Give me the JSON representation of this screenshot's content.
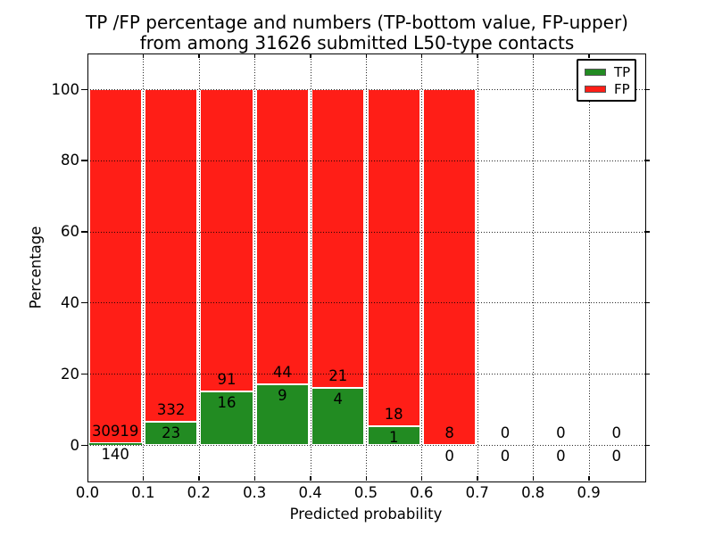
{
  "figure": {
    "title_line1": "TP /FP percentage and numbers (TP-bottom value, FP-upper)",
    "title_line2": "from among 31626 submitted L50-type contacts",
    "xlabel": "Predicted probability",
    "ylabel": "Percentage"
  },
  "legend": {
    "items": [
      {
        "label": "TP",
        "color": "#228b22"
      },
      {
        "label": "FP",
        "color": "#ff1e17"
      }
    ]
  },
  "axes": {
    "ytick_labels": [
      "0",
      "20",
      "40",
      "60",
      "80",
      "100"
    ],
    "ytick_values": [
      0,
      20,
      40,
      60,
      80,
      100
    ],
    "xtick_labels": [
      "0.0",
      "0.1",
      "0.2",
      "0.3",
      "0.4",
      "0.5",
      "0.6",
      "0.7",
      "0.8",
      "0.9"
    ],
    "xtick_values": [
      0.0,
      0.1,
      0.2,
      0.3,
      0.4,
      0.5,
      0.6,
      0.7,
      0.8,
      0.9
    ]
  },
  "chart_data": {
    "type": "bar",
    "variant": "stacked-percentage-histogram",
    "title": "TP /FP percentage and numbers (TP-bottom value, FP-upper) from among 31626 submitted L50-type contacts",
    "total_submitted_contacts": 31626,
    "xlabel": "Predicted probability",
    "ylabel": "Percentage",
    "xlim": [
      0.0,
      1.0
    ],
    "ylim": [
      -10.6,
      110
    ],
    "bin_width": 0.1,
    "categories": [
      "0.0-0.1",
      "0.1-0.2",
      "0.2-0.3",
      "0.3-0.4",
      "0.4-0.5",
      "0.5-0.6",
      "0.6-0.7",
      "0.7-0.8",
      "0.8-0.9",
      "0.9-1.0"
    ],
    "series": [
      {
        "name": "TP",
        "color": "#228b22",
        "counts": [
          140,
          23,
          16,
          9,
          4,
          1,
          0,
          0,
          0,
          0
        ]
      },
      {
        "name": "FP",
        "color": "#ff1e17",
        "counts": [
          30919,
          332,
          91,
          44,
          21,
          18,
          8,
          0,
          0,
          0
        ]
      }
    ],
    "tp_percent_per_bin": [
      0.45,
      6.48,
      14.95,
      16.98,
      16.0,
      5.26,
      0.0,
      0.0,
      0.0,
      0.0
    ],
    "bars_total_percent": 100,
    "legend_position": "upper right",
    "grid": "dotted"
  }
}
